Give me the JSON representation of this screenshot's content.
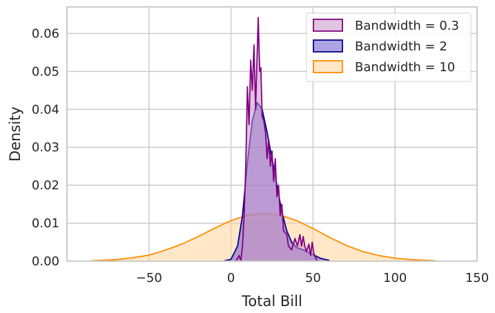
{
  "chart_data": {
    "type": "area",
    "title": "",
    "xlabel": "Total Bill",
    "ylabel": "Density",
    "xlim": [
      -100,
      150
    ],
    "ylim": [
      0,
      0.067
    ],
    "xticks": [
      -50,
      0,
      50,
      100,
      150
    ],
    "xtick_labels": [
      "−50",
      "0",
      "50",
      "100",
      "150"
    ],
    "yticks": [
      0,
      0.01,
      0.02,
      0.03,
      0.04,
      0.05,
      0.06
    ],
    "ytick_labels": [
      "0.00",
      "0.01",
      "0.02",
      "0.03",
      "0.04",
      "0.05",
      "0.06"
    ],
    "grid": true,
    "legend_position": "top-right",
    "series": [
      {
        "name": "Bandwidth = 10",
        "stroke": "#ff8c00",
        "fill": "#ffd39b",
        "x": [
          -85,
          -70,
          -60,
          -50,
          -40,
          -30,
          -20,
          -10,
          0,
          10,
          20,
          30,
          40,
          50,
          60,
          70,
          80,
          90,
          100,
          110,
          120,
          125
        ],
        "y": [
          0.0001,
          0.0004,
          0.0009,
          0.0016,
          0.0029,
          0.0045,
          0.0065,
          0.0087,
          0.0107,
          0.0121,
          0.0126,
          0.0121,
          0.0107,
          0.0086,
          0.0063,
          0.0042,
          0.0026,
          0.0015,
          0.0008,
          0.0004,
          0.0002,
          0.0001
        ]
      },
      {
        "name": "Bandwidth = 2",
        "stroke": "#00008b",
        "fill": "#6a5acd",
        "x": [
          -5,
          0,
          4,
          7,
          10,
          13,
          16,
          19,
          22,
          25,
          28,
          31,
          34,
          37,
          40,
          45,
          50,
          55,
          60
        ],
        "y": [
          0,
          0.0005,
          0.004,
          0.012,
          0.026,
          0.037,
          0.0418,
          0.04,
          0.034,
          0.027,
          0.02,
          0.013,
          0.008,
          0.005,
          0.0036,
          0.0028,
          0.0017,
          0.0007,
          0.0002
        ]
      },
      {
        "name": "Bandwidth = 0.3",
        "stroke": "#800080",
        "fill": "#c994c7",
        "x": [
          3,
          5,
          6,
          7,
          8,
          9,
          10,
          11,
          12,
          13,
          14,
          15,
          16,
          16.6,
          17.5,
          18.2,
          19,
          20,
          21,
          22,
          23,
          24,
          25,
          26,
          27,
          28,
          29,
          30,
          31,
          32,
          34,
          35,
          37,
          39,
          40.5,
          42,
          43,
          44,
          45,
          46,
          47.5,
          48.5,
          49.5,
          50.5,
          51.5,
          52.5
        ],
        "y": [
          0,
          0.0015,
          0.0,
          0.004,
          0.012,
          0.025,
          0.046,
          0.036,
          0.053,
          0.045,
          0.057,
          0.04,
          0.0555,
          0.0642,
          0.05,
          0.051,
          0.038,
          0.037,
          0.034,
          0.027,
          0.032,
          0.025,
          0.029,
          0.021,
          0.027,
          0.017,
          0.02,
          0.012,
          0.015,
          0.008,
          0.007,
          0.004,
          0.003,
          0.006,
          0.004,
          0.007,
          0.004,
          0.0065,
          0.004,
          0.0025,
          0.0045,
          0.0015,
          0.005,
          0.002,
          0.001,
          0.0
        ]
      }
    ]
  }
}
